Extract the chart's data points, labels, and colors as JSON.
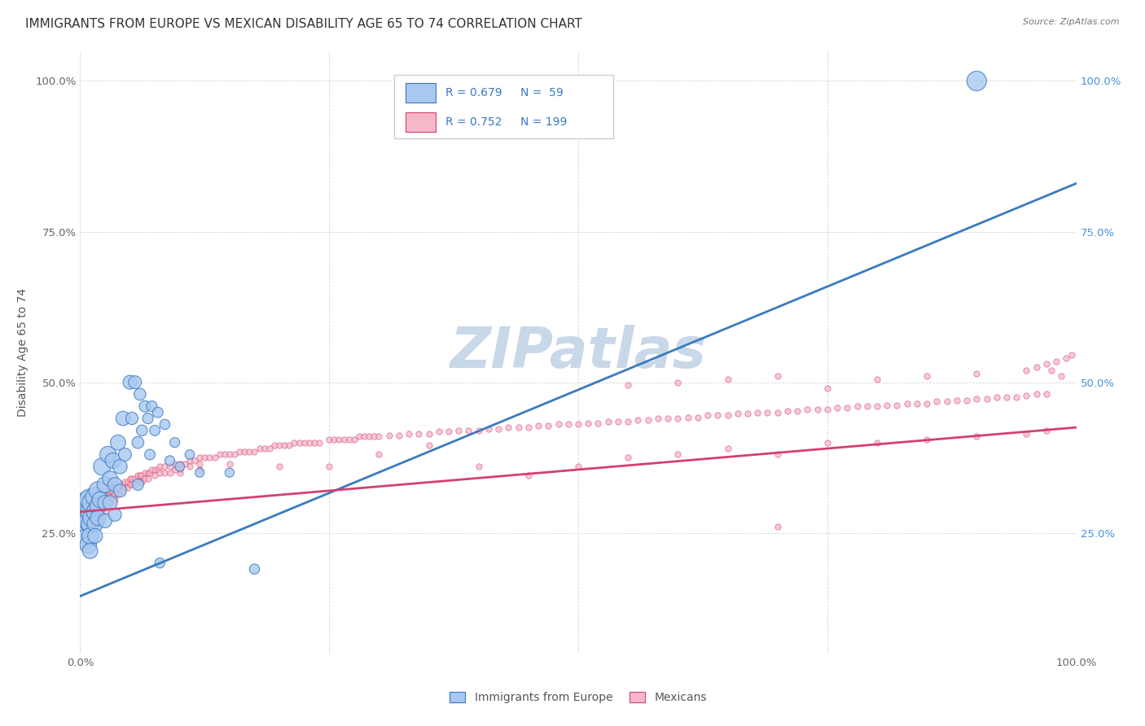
{
  "title": "IMMIGRANTS FROM EUROPE VS MEXICAN DISABILITY AGE 65 TO 74 CORRELATION CHART",
  "source": "Source: ZipAtlas.com",
  "ylabel": "Disability Age 65 to 74",
  "xlim": [
    0.0,
    1.0
  ],
  "ylim": [
    0.05,
    1.05
  ],
  "xticks": [
    0.0,
    0.25,
    0.5,
    0.75,
    1.0
  ],
  "xtick_labels": [
    "0.0%",
    "",
    "",
    "",
    "100.0%"
  ],
  "yticks": [
    0.25,
    0.5,
    0.75,
    1.0
  ],
  "ytick_labels": [
    "25.0%",
    "50.0%",
    "75.0%",
    "100.0%"
  ],
  "europe_R": 0.679,
  "europe_N": 59,
  "mexican_R": 0.752,
  "mexican_N": 199,
  "europe_color": "#a8c8f0",
  "mexican_color": "#f5b8c8",
  "europe_line_color": "#3a7abf",
  "mexican_line_color": "#d44070",
  "background_color": "#ffffff",
  "watermark": "ZIPatlas",
  "watermark_color": "#c8d8e8",
  "europe_line_x0": 0.0,
  "europe_line_y0": 0.145,
  "europe_line_x1": 1.0,
  "europe_line_y1": 0.83,
  "mexican_line_x0": 0.0,
  "mexican_line_y0": 0.285,
  "mexican_line_x1": 1.0,
  "mexican_line_y1": 0.425,
  "europe_scatter": [
    [
      0.005,
      0.28
    ],
    [
      0.005,
      0.26
    ],
    [
      0.005,
      0.24
    ],
    [
      0.008,
      0.3
    ],
    [
      0.008,
      0.27
    ],
    [
      0.008,
      0.23
    ],
    [
      0.01,
      0.305
    ],
    [
      0.01,
      0.285
    ],
    [
      0.01,
      0.265
    ],
    [
      0.01,
      0.245
    ],
    [
      0.01,
      0.22
    ],
    [
      0.012,
      0.3
    ],
    [
      0.012,
      0.275
    ],
    [
      0.015,
      0.31
    ],
    [
      0.015,
      0.285
    ],
    [
      0.015,
      0.265
    ],
    [
      0.015,
      0.245
    ],
    [
      0.018,
      0.32
    ],
    [
      0.018,
      0.295
    ],
    [
      0.018,
      0.275
    ],
    [
      0.02,
      0.305
    ],
    [
      0.022,
      0.36
    ],
    [
      0.025,
      0.33
    ],
    [
      0.025,
      0.3
    ],
    [
      0.025,
      0.27
    ],
    [
      0.028,
      0.38
    ],
    [
      0.03,
      0.34
    ],
    [
      0.03,
      0.3
    ],
    [
      0.033,
      0.37
    ],
    [
      0.035,
      0.33
    ],
    [
      0.035,
      0.28
    ],
    [
      0.038,
      0.4
    ],
    [
      0.04,
      0.36
    ],
    [
      0.04,
      0.32
    ],
    [
      0.043,
      0.44
    ],
    [
      0.045,
      0.38
    ],
    [
      0.05,
      0.5
    ],
    [
      0.052,
      0.44
    ],
    [
      0.055,
      0.5
    ],
    [
      0.058,
      0.4
    ],
    [
      0.058,
      0.33
    ],
    [
      0.06,
      0.48
    ],
    [
      0.062,
      0.42
    ],
    [
      0.065,
      0.46
    ],
    [
      0.068,
      0.44
    ],
    [
      0.07,
      0.38
    ],
    [
      0.072,
      0.46
    ],
    [
      0.075,
      0.42
    ],
    [
      0.078,
      0.45
    ],
    [
      0.08,
      0.2
    ],
    [
      0.085,
      0.43
    ],
    [
      0.09,
      0.37
    ],
    [
      0.095,
      0.4
    ],
    [
      0.1,
      0.36
    ],
    [
      0.11,
      0.38
    ],
    [
      0.12,
      0.35
    ],
    [
      0.15,
      0.35
    ],
    [
      0.175,
      0.19
    ],
    [
      0.9,
      1.0
    ]
  ],
  "europe_sizes": [
    500,
    380,
    280,
    440,
    300,
    220,
    360,
    300,
    250,
    210,
    180,
    320,
    270,
    280,
    240,
    200,
    170,
    260,
    220,
    190,
    200,
    230,
    200,
    170,
    150,
    210,
    180,
    160,
    190,
    160,
    130,
    180,
    160,
    130,
    160,
    130,
    150,
    120,
    130,
    110,
    100,
    110,
    95,
    100,
    90,
    85,
    90,
    85,
    85,
    80,
    80,
    75,
    75,
    70,
    70,
    65,
    65,
    80,
    300
  ],
  "mexican_scatter": [
    [
      0.005,
      0.285
    ],
    [
      0.008,
      0.29
    ],
    [
      0.008,
      0.28
    ],
    [
      0.01,
      0.295
    ],
    [
      0.01,
      0.285
    ],
    [
      0.01,
      0.275
    ],
    [
      0.012,
      0.295
    ],
    [
      0.012,
      0.285
    ],
    [
      0.015,
      0.3
    ],
    [
      0.015,
      0.29
    ],
    [
      0.015,
      0.28
    ],
    [
      0.015,
      0.27
    ],
    [
      0.018,
      0.305
    ],
    [
      0.018,
      0.295
    ],
    [
      0.018,
      0.285
    ],
    [
      0.02,
      0.31
    ],
    [
      0.02,
      0.3
    ],
    [
      0.02,
      0.29
    ],
    [
      0.02,
      0.28
    ],
    [
      0.022,
      0.31
    ],
    [
      0.022,
      0.3
    ],
    [
      0.025,
      0.315
    ],
    [
      0.025,
      0.305
    ],
    [
      0.025,
      0.295
    ],
    [
      0.025,
      0.285
    ],
    [
      0.028,
      0.315
    ],
    [
      0.03,
      0.32
    ],
    [
      0.03,
      0.31
    ],
    [
      0.03,
      0.3
    ],
    [
      0.032,
      0.32
    ],
    [
      0.032,
      0.31
    ],
    [
      0.035,
      0.325
    ],
    [
      0.035,
      0.315
    ],
    [
      0.035,
      0.305
    ],
    [
      0.038,
      0.325
    ],
    [
      0.038,
      0.315
    ],
    [
      0.04,
      0.33
    ],
    [
      0.04,
      0.32
    ],
    [
      0.042,
      0.33
    ],
    [
      0.042,
      0.32
    ],
    [
      0.045,
      0.335
    ],
    [
      0.045,
      0.325
    ],
    [
      0.048,
      0.335
    ],
    [
      0.048,
      0.325
    ],
    [
      0.05,
      0.34
    ],
    [
      0.05,
      0.33
    ],
    [
      0.052,
      0.34
    ],
    [
      0.052,
      0.33
    ],
    [
      0.055,
      0.34
    ],
    [
      0.055,
      0.33
    ],
    [
      0.058,
      0.345
    ],
    [
      0.06,
      0.345
    ],
    [
      0.06,
      0.335
    ],
    [
      0.062,
      0.345
    ],
    [
      0.062,
      0.335
    ],
    [
      0.065,
      0.35
    ],
    [
      0.065,
      0.34
    ],
    [
      0.068,
      0.35
    ],
    [
      0.068,
      0.34
    ],
    [
      0.07,
      0.35
    ],
    [
      0.072,
      0.355
    ],
    [
      0.075,
      0.355
    ],
    [
      0.075,
      0.345
    ],
    [
      0.078,
      0.355
    ],
    [
      0.08,
      0.36
    ],
    [
      0.08,
      0.35
    ],
    [
      0.085,
      0.36
    ],
    [
      0.085,
      0.35
    ],
    [
      0.09,
      0.36
    ],
    [
      0.09,
      0.35
    ],
    [
      0.095,
      0.365
    ],
    [
      0.095,
      0.355
    ],
    [
      0.1,
      0.365
    ],
    [
      0.1,
      0.355
    ],
    [
      0.105,
      0.365
    ],
    [
      0.11,
      0.37
    ],
    [
      0.11,
      0.36
    ],
    [
      0.115,
      0.37
    ],
    [
      0.12,
      0.375
    ],
    [
      0.12,
      0.365
    ],
    [
      0.125,
      0.375
    ],
    [
      0.13,
      0.375
    ],
    [
      0.135,
      0.375
    ],
    [
      0.14,
      0.38
    ],
    [
      0.145,
      0.38
    ],
    [
      0.15,
      0.38
    ],
    [
      0.155,
      0.38
    ],
    [
      0.16,
      0.385
    ],
    [
      0.165,
      0.385
    ],
    [
      0.17,
      0.385
    ],
    [
      0.175,
      0.385
    ],
    [
      0.18,
      0.39
    ],
    [
      0.185,
      0.39
    ],
    [
      0.19,
      0.39
    ],
    [
      0.195,
      0.395
    ],
    [
      0.2,
      0.395
    ],
    [
      0.205,
      0.395
    ],
    [
      0.21,
      0.395
    ],
    [
      0.215,
      0.4
    ],
    [
      0.22,
      0.4
    ],
    [
      0.225,
      0.4
    ],
    [
      0.23,
      0.4
    ],
    [
      0.235,
      0.4
    ],
    [
      0.24,
      0.4
    ],
    [
      0.25,
      0.405
    ],
    [
      0.255,
      0.405
    ],
    [
      0.26,
      0.405
    ],
    [
      0.265,
      0.405
    ],
    [
      0.27,
      0.405
    ],
    [
      0.275,
      0.405
    ],
    [
      0.28,
      0.41
    ],
    [
      0.285,
      0.41
    ],
    [
      0.29,
      0.41
    ],
    [
      0.295,
      0.41
    ],
    [
      0.3,
      0.41
    ],
    [
      0.31,
      0.412
    ],
    [
      0.32,
      0.412
    ],
    [
      0.33,
      0.415
    ],
    [
      0.34,
      0.415
    ],
    [
      0.35,
      0.415
    ],
    [
      0.36,
      0.418
    ],
    [
      0.37,
      0.418
    ],
    [
      0.38,
      0.42
    ],
    [
      0.39,
      0.42
    ],
    [
      0.4,
      0.42
    ],
    [
      0.41,
      0.422
    ],
    [
      0.42,
      0.422
    ],
    [
      0.43,
      0.425
    ],
    [
      0.44,
      0.425
    ],
    [
      0.45,
      0.425
    ],
    [
      0.46,
      0.428
    ],
    [
      0.47,
      0.428
    ],
    [
      0.48,
      0.43
    ],
    [
      0.49,
      0.43
    ],
    [
      0.5,
      0.43
    ],
    [
      0.51,
      0.432
    ],
    [
      0.52,
      0.432
    ],
    [
      0.53,
      0.435
    ],
    [
      0.54,
      0.435
    ],
    [
      0.55,
      0.435
    ],
    [
      0.56,
      0.438
    ],
    [
      0.57,
      0.438
    ],
    [
      0.58,
      0.44
    ],
    [
      0.59,
      0.44
    ],
    [
      0.6,
      0.44
    ],
    [
      0.61,
      0.442
    ],
    [
      0.62,
      0.442
    ],
    [
      0.63,
      0.445
    ],
    [
      0.64,
      0.445
    ],
    [
      0.65,
      0.445
    ],
    [
      0.66,
      0.448
    ],
    [
      0.67,
      0.448
    ],
    [
      0.68,
      0.45
    ],
    [
      0.69,
      0.45
    ],
    [
      0.7,
      0.45
    ],
    [
      0.71,
      0.452
    ],
    [
      0.72,
      0.452
    ],
    [
      0.73,
      0.455
    ],
    [
      0.74,
      0.455
    ],
    [
      0.75,
      0.455
    ],
    [
      0.76,
      0.458
    ],
    [
      0.77,
      0.458
    ],
    [
      0.78,
      0.46
    ],
    [
      0.79,
      0.46
    ],
    [
      0.8,
      0.46
    ],
    [
      0.81,
      0.462
    ],
    [
      0.82,
      0.462
    ],
    [
      0.83,
      0.465
    ],
    [
      0.84,
      0.465
    ],
    [
      0.85,
      0.465
    ],
    [
      0.86,
      0.468
    ],
    [
      0.87,
      0.468
    ],
    [
      0.88,
      0.47
    ],
    [
      0.89,
      0.47
    ],
    [
      0.9,
      0.472
    ],
    [
      0.91,
      0.472
    ],
    [
      0.92,
      0.475
    ],
    [
      0.93,
      0.475
    ],
    [
      0.94,
      0.475
    ],
    [
      0.95,
      0.478
    ],
    [
      0.96,
      0.48
    ],
    [
      0.97,
      0.48
    ],
    [
      0.55,
      0.375
    ],
    [
      0.6,
      0.38
    ],
    [
      0.65,
      0.39
    ],
    [
      0.7,
      0.38
    ],
    [
      0.75,
      0.4
    ],
    [
      0.8,
      0.4
    ],
    [
      0.85,
      0.405
    ],
    [
      0.9,
      0.41
    ],
    [
      0.95,
      0.415
    ],
    [
      0.97,
      0.42
    ],
    [
      0.55,
      0.495
    ],
    [
      0.6,
      0.5
    ],
    [
      0.65,
      0.505
    ],
    [
      0.7,
      0.51
    ],
    [
      0.75,
      0.49
    ],
    [
      0.8,
      0.505
    ],
    [
      0.85,
      0.51
    ],
    [
      0.9,
      0.515
    ],
    [
      0.95,
      0.52
    ],
    [
      0.96,
      0.525
    ],
    [
      0.97,
      0.53
    ],
    [
      0.975,
      0.52
    ],
    [
      0.98,
      0.535
    ],
    [
      0.985,
      0.51
    ],
    [
      0.99,
      0.54
    ],
    [
      0.995,
      0.545
    ],
    [
      0.7,
      0.26
    ],
    [
      0.5,
      0.36
    ],
    [
      0.45,
      0.345
    ],
    [
      0.4,
      0.36
    ],
    [
      0.35,
      0.395
    ],
    [
      0.3,
      0.38
    ],
    [
      0.25,
      0.36
    ],
    [
      0.2,
      0.36
    ],
    [
      0.15,
      0.365
    ],
    [
      0.12,
      0.355
    ],
    [
      0.1,
      0.35
    ]
  ],
  "title_fontsize": 11,
  "ylabel_fontsize": 10,
  "tick_fontsize": 9.5,
  "right_tick_color": "#4a90d9"
}
